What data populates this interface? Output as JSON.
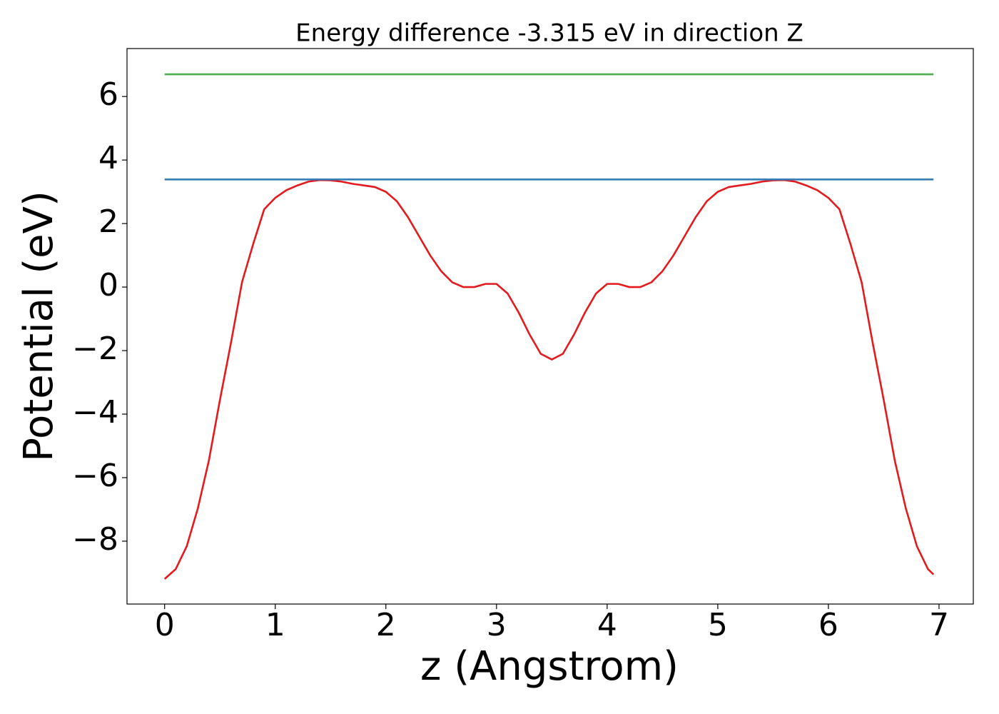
{
  "chart_data": {
    "type": "line",
    "title": "Energy difference -3.315 eV in direction Z",
    "xlabel": "z (Angstrom)",
    "ylabel": "Potential (eV)",
    "xlim": [
      -0.34,
      7.31
    ],
    "ylim": [
      -9.98,
      7.51
    ],
    "xticks": [
      0,
      1,
      2,
      3,
      4,
      5,
      6,
      7
    ],
    "yticks": [
      {
        "value": -8,
        "label": "−8"
      },
      {
        "value": -6,
        "label": "−6"
      },
      {
        "value": -4,
        "label": "−4"
      },
      {
        "value": -2,
        "label": "−2"
      },
      0,
      2,
      4,
      6
    ],
    "series": [
      {
        "color": "#e41a1c",
        "x": [
          0,
          0.1,
          0.2,
          0.3,
          0.4,
          0.5,
          0.6,
          0.7,
          0.8,
          0.9,
          1.0,
          1.1,
          1.2,
          1.3,
          1.4,
          1.5,
          1.6,
          1.7,
          1.8,
          1.9,
          2.0,
          2.1,
          2.2,
          2.3,
          2.4,
          2.5,
          2.6,
          2.7,
          2.8,
          2.9,
          3.0,
          3.1,
          3.2,
          3.3,
          3.4,
          3.5,
          3.6,
          3.7,
          3.8,
          3.9,
          4.0,
          4.1,
          4.2,
          4.3,
          4.4,
          4.5,
          4.6,
          4.7,
          4.8,
          4.9,
          5.0,
          5.1,
          5.2,
          5.3,
          5.4,
          5.5,
          5.6,
          5.7,
          5.8,
          5.9,
          6.0,
          6.1,
          6.2,
          6.3,
          6.4,
          6.5,
          6.6,
          6.7,
          6.8,
          6.9,
          6.95
        ],
        "values": [
          -9.19,
          -8.88,
          -8.16,
          -6.97,
          -5.46,
          -3.55,
          -1.75,
          0.16,
          1.35,
          2.45,
          2.81,
          3.05,
          3.2,
          3.32,
          3.37,
          3.36,
          3.32,
          3.25,
          3.2,
          3.15,
          3.0,
          2.7,
          2.2,
          1.6,
          1.0,
          0.5,
          0.15,
          0.0,
          0.0,
          0.1,
          0.1,
          -0.2,
          -0.8,
          -1.5,
          -2.1,
          -2.28,
          -2.1,
          -1.5,
          -0.8,
          -0.2,
          0.1,
          0.1,
          0.0,
          0.0,
          0.15,
          0.5,
          1.0,
          1.6,
          2.2,
          2.7,
          3.0,
          3.15,
          3.2,
          3.25,
          3.32,
          3.36,
          3.37,
          3.32,
          3.2,
          3.05,
          2.81,
          2.45,
          1.35,
          0.16,
          -1.75,
          -3.55,
          -5.46,
          -6.97,
          -8.16,
          -8.88,
          -9.05
        ]
      },
      {
        "color": "#377eb8",
        "x": [
          0,
          6.95
        ],
        "values": [
          3.39,
          3.39
        ]
      },
      {
        "color": "#4daf4a",
        "x": [
          0,
          6.95
        ],
        "values": [
          6.7,
          6.7
        ]
      }
    ]
  }
}
